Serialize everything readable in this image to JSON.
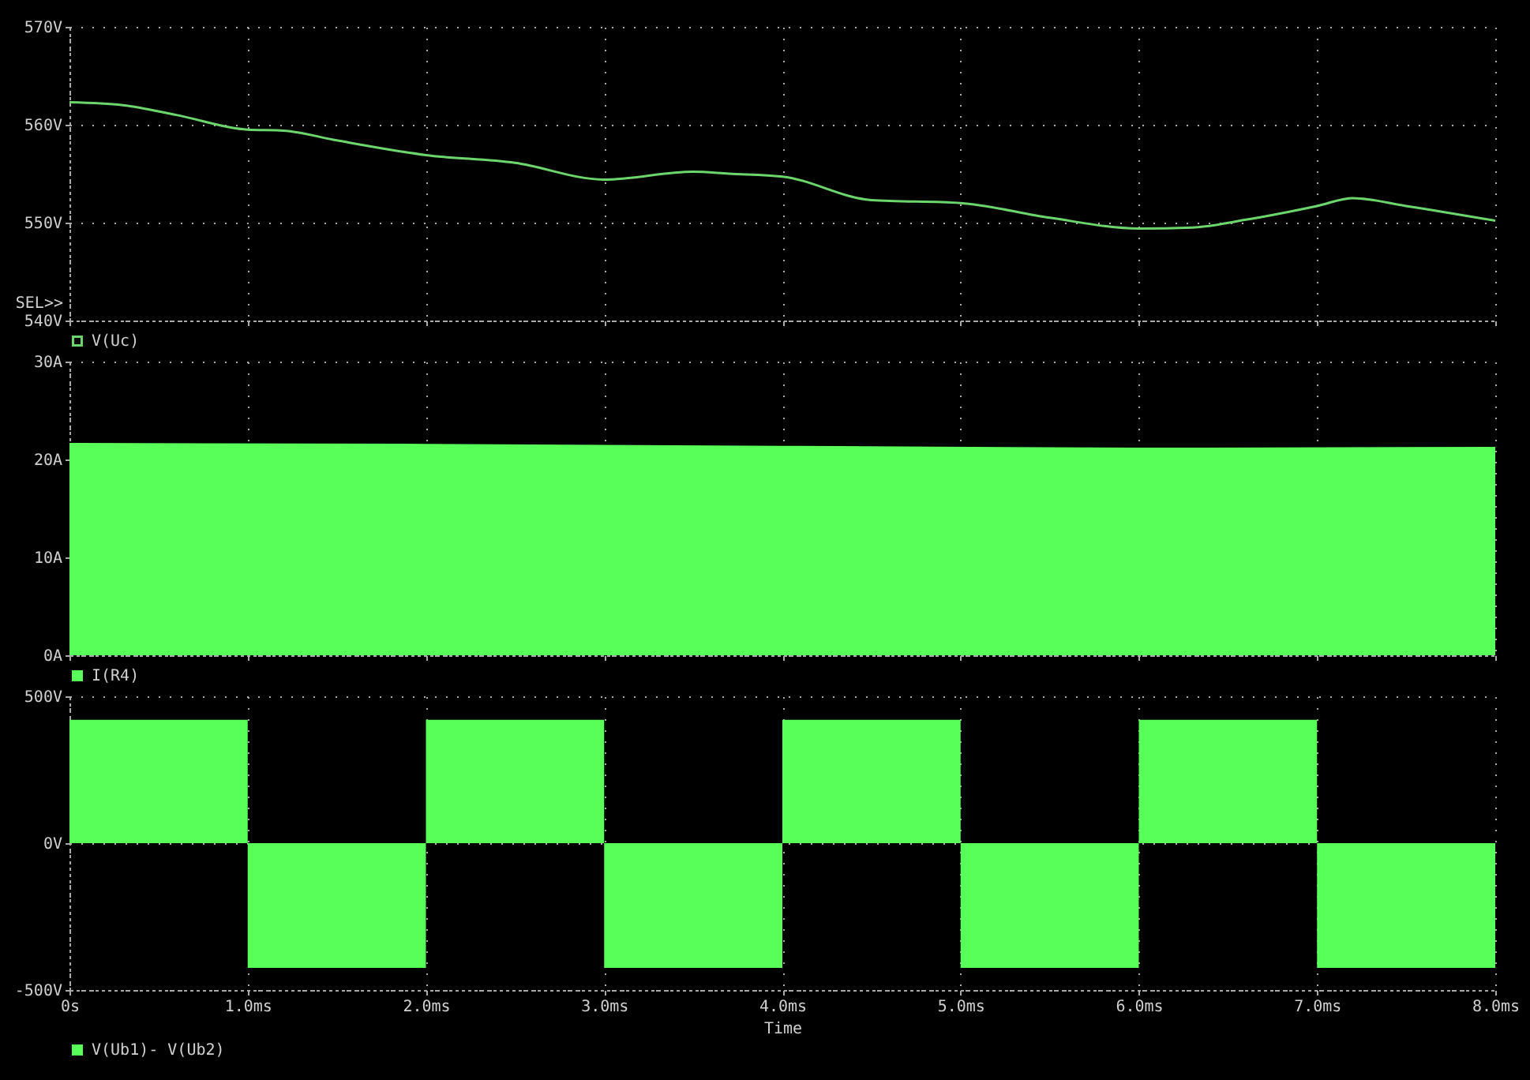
{
  "chart_data": [
    {
      "type": "line",
      "annotations": [
        "SEL>>"
      ],
      "xlim": [
        0,
        8
      ],
      "xticks": [
        {
          "value": 0,
          "label": null
        },
        {
          "value": 1,
          "label": null
        },
        {
          "value": 2,
          "label": null
        },
        {
          "value": 3,
          "label": null
        },
        {
          "value": 4,
          "label": null
        },
        {
          "value": 5,
          "label": null
        },
        {
          "value": 6,
          "label": null
        },
        {
          "value": 7,
          "label": null
        },
        {
          "value": 8,
          "label": null
        }
      ],
      "ylim": [
        540,
        570
      ],
      "yticks": [
        {
          "value": 540,
          "label": "540V"
        },
        {
          "value": 550,
          "label": "550V"
        },
        {
          "value": 560,
          "label": "560V"
        },
        {
          "value": 570,
          "label": "570V"
        }
      ],
      "grid": true,
      "legend": "bottom left",
      "tick_labels": "y",
      "x": [
        0,
        0.3,
        0.6,
        1,
        1.2,
        1.5,
        2,
        2.5,
        3,
        3.5,
        3.7,
        4,
        4.5,
        5,
        5.5,
        6,
        6.3,
        6.6,
        7,
        7.2,
        7.5,
        8
      ],
      "series": [
        {
          "name": "V(Uc)",
          "color": "#6cd66c",
          "values": [
            562.3,
            562,
            561,
            559.5,
            559.4,
            558.4,
            556.9,
            556.1,
            554.4,
            555.2,
            555,
            554.7,
            552.3,
            552,
            550.5,
            549.4,
            549.5,
            550.3,
            551.7,
            552.5,
            551.7,
            550.2
          ]
        }
      ]
    },
    {
      "type": "area",
      "xlim": [
        0,
        8
      ],
      "xticks": [
        {
          "value": 0,
          "label": null
        },
        {
          "value": 1,
          "label": null
        },
        {
          "value": 2,
          "label": null
        },
        {
          "value": 3,
          "label": null
        },
        {
          "value": 4,
          "label": null
        },
        {
          "value": 5,
          "label": null
        },
        {
          "value": 6,
          "label": null
        },
        {
          "value": 7,
          "label": null
        },
        {
          "value": 8,
          "label": null
        }
      ],
      "ylim": [
        0,
        30
      ],
      "yticks": [
        {
          "value": 0,
          "label": "0A"
        },
        {
          "value": 10,
          "label": "10A"
        },
        {
          "value": 20,
          "label": "20A"
        },
        {
          "value": 30,
          "label": "30A"
        }
      ],
      "grid": true,
      "legend": "bottom left",
      "tick_labels": "y",
      "x": [
        0,
        2,
        4,
        6,
        8
      ],
      "series": [
        {
          "name": "I(R4)",
          "color": "#58ff58",
          "values": [
            21.7,
            21.6,
            21.4,
            21.2,
            21.3
          ]
        }
      ]
    },
    {
      "type": "area",
      "xlabel": "Time",
      "xlim": [
        0,
        8
      ],
      "xticks": [
        {
          "value": 0,
          "label": "0s"
        },
        {
          "value": 1,
          "label": "1.0ms"
        },
        {
          "value": 2,
          "label": "2.0ms"
        },
        {
          "value": 3,
          "label": "3.0ms"
        },
        {
          "value": 4,
          "label": "4.0ms"
        },
        {
          "value": 5,
          "label": "5.0ms"
        },
        {
          "value": 6,
          "label": "6.0ms"
        },
        {
          "value": 7,
          "label": "7.0ms"
        },
        {
          "value": 8,
          "label": "8.0ms"
        }
      ],
      "ylim": [
        -500,
        500
      ],
      "yticks": [
        {
          "value": -500,
          "label": "-500V"
        },
        {
          "value": 0,
          "label": "0V"
        },
        {
          "value": 500,
          "label": "500V"
        }
      ],
      "grid": true,
      "legend": "bottom left",
      "x": [
        0,
        1,
        1,
        2,
        2,
        3,
        3,
        4,
        4,
        5,
        5,
        6,
        6,
        7,
        7,
        8
      ],
      "series": [
        {
          "name": "V(Ub1)- V(Ub2)",
          "color": "#58ff58",
          "values": [
            420,
            420,
            -425,
            -425,
            420,
            420,
            -425,
            -425,
            420,
            420,
            -425,
            -425,
            420,
            420,
            -425,
            -425
          ]
        }
      ]
    }
  ]
}
